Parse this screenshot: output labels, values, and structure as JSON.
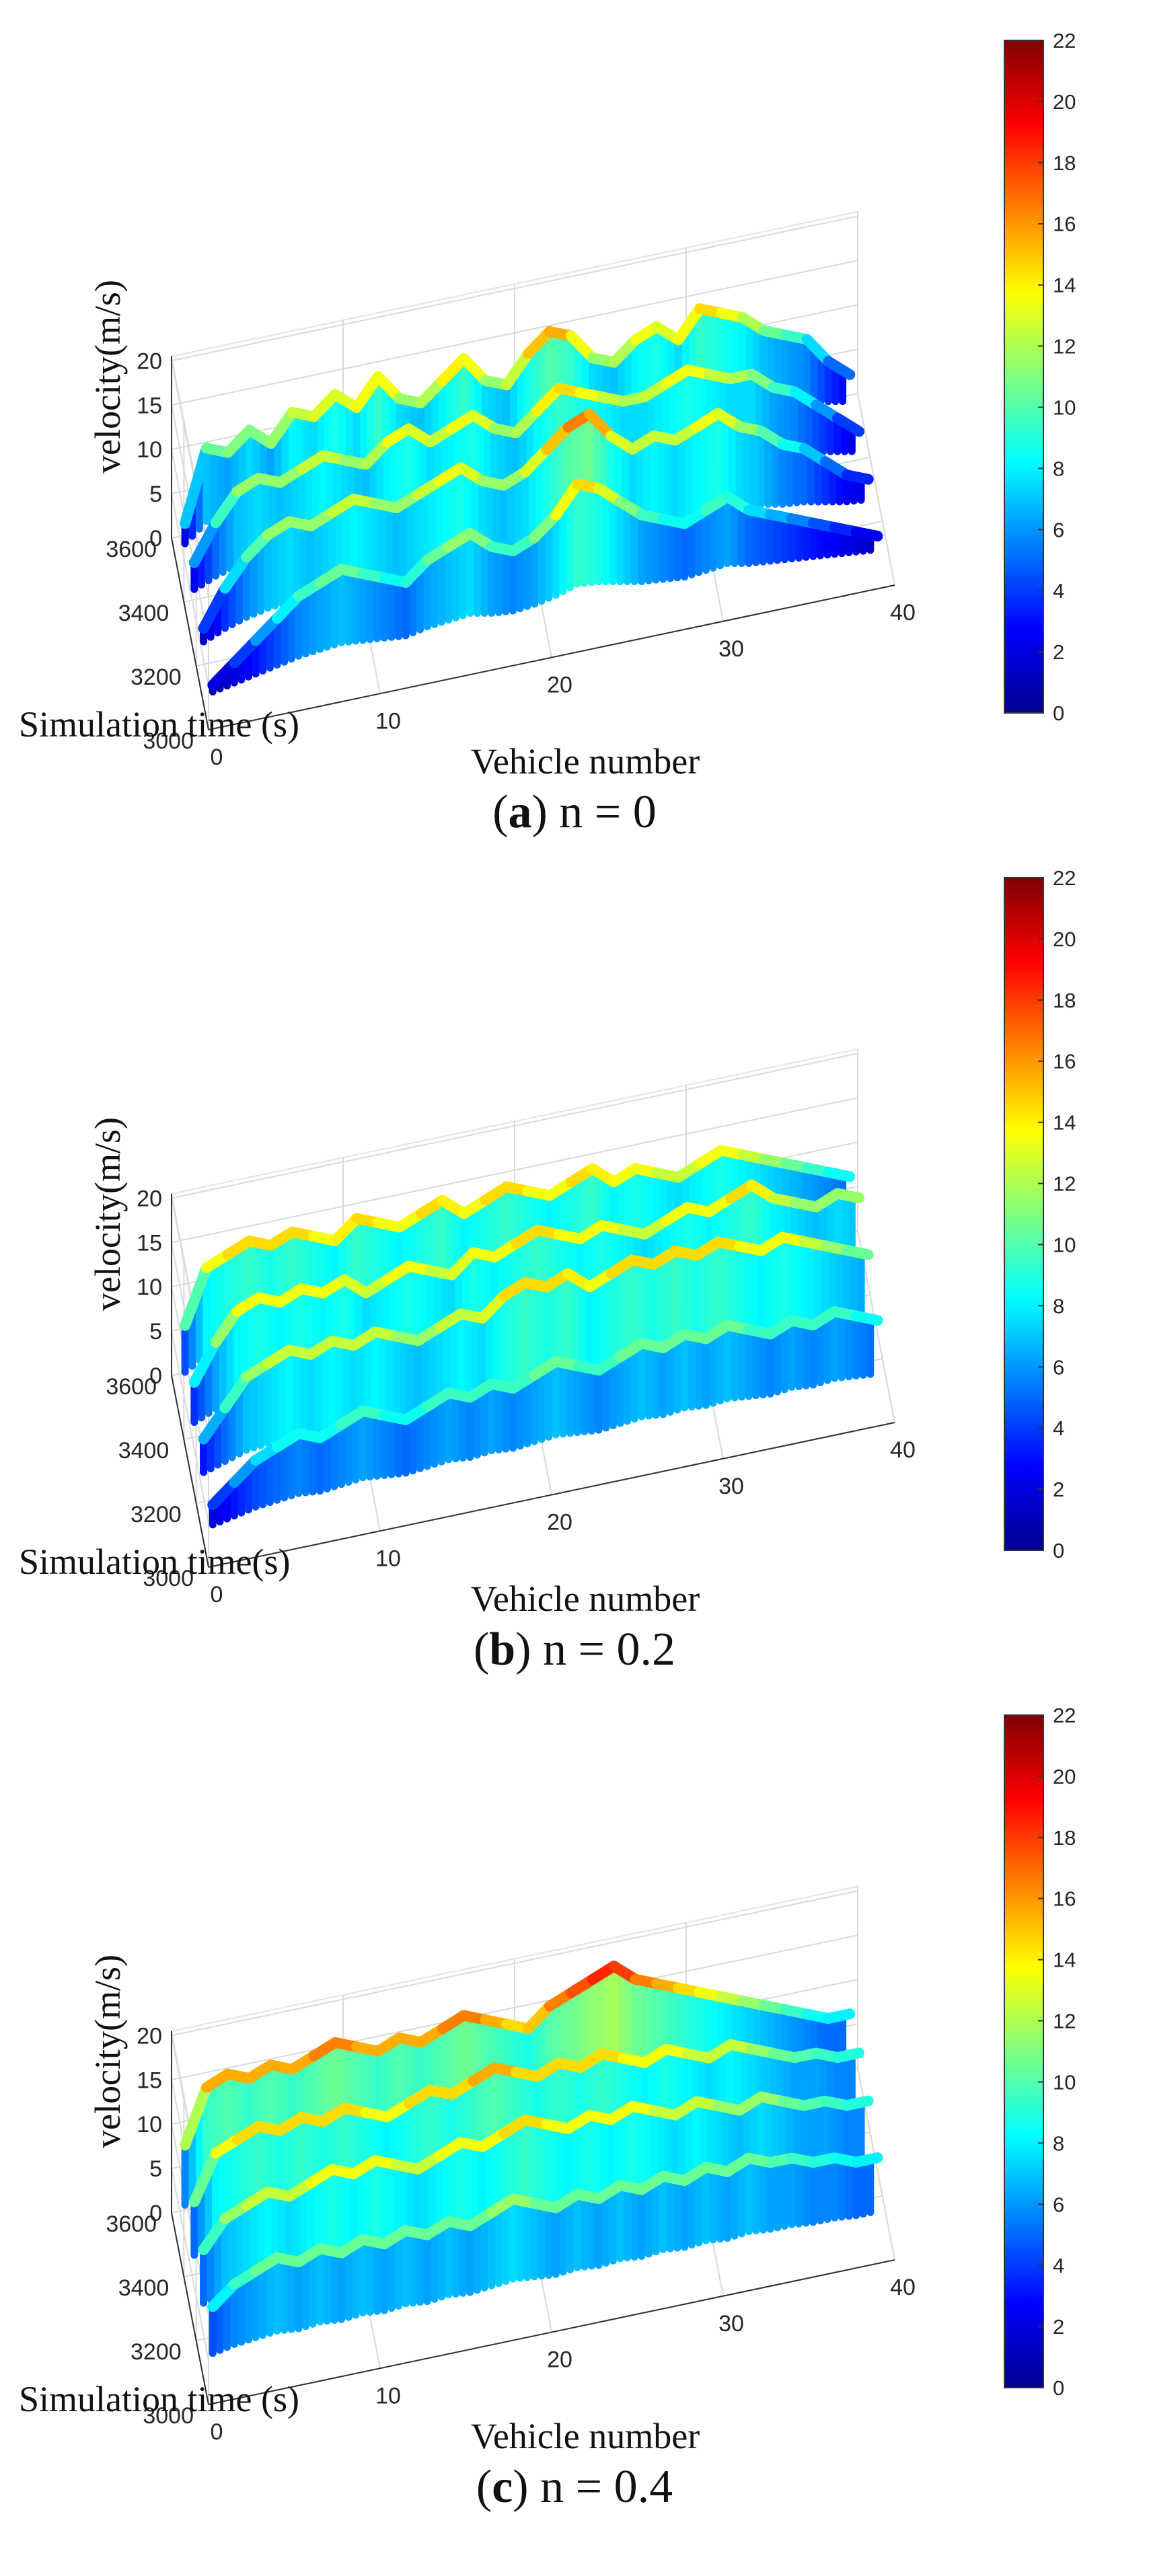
{
  "figure": {
    "z_label": "velocity(m/s)",
    "colorbar": {
      "ticks": [
        "0",
        "2",
        "4",
        "6",
        "8",
        "10",
        "12",
        "14",
        "16",
        "18",
        "20",
        "22"
      ],
      "min": 0,
      "max": 22,
      "colormap": "jet",
      "colors": [
        "#00008f",
        "#0000ff",
        "#0080ff",
        "#00ffff",
        "#80ff80",
        "#ffff00",
        "#ff8000",
        "#ff0000",
        "#800000"
      ]
    }
  },
  "chart_data": [
    {
      "type": "3d-surface",
      "caption_letter": "a",
      "caption_rest": " n = 0",
      "xlabel": "Vehicle number",
      "ylabel": "Simulation time (s)",
      "zlabel": "velocity(m/s)",
      "x_ticks": [
        "0",
        "10",
        "20",
        "30",
        "40"
      ],
      "y_ticks": [
        "3000",
        "3200",
        "3400",
        "3600"
      ],
      "z_ticks": [
        "0",
        "5",
        "10",
        "15",
        "20"
      ],
      "xlim": [
        0,
        40
      ],
      "ylim": [
        3000,
        3600
      ],
      "zlim": [
        0,
        22
      ],
      "colorbar_ticks": [
        "0",
        "2",
        "4",
        "6",
        "8",
        "10",
        "12",
        "14",
        "16",
        "18",
        "20",
        "22"
      ],
      "series": [
        {
          "values": [
            3,
            11,
            10,
            12,
            10,
            13,
            12,
            14,
            12,
            15,
            12,
            11,
            13,
            15,
            12,
            11,
            14,
            16,
            15,
            12,
            11,
            13,
            14,
            12,
            15,
            14,
            13,
            11,
            10,
            9,
            6,
            4
          ]
        },
        {
          "values": [
            4,
            8,
            11,
            12,
            11,
            12,
            13,
            12,
            11,
            13,
            14,
            12,
            13,
            14,
            12,
            11,
            13,
            15,
            14,
            13,
            12,
            12,
            13,
            14,
            13,
            12,
            12,
            10,
            9,
            7,
            5,
            3
          ]
        },
        {
          "values": [
            2,
            6,
            9,
            11,
            12,
            11,
            12,
            13,
            12,
            11,
            12,
            13,
            14,
            12,
            11,
            12,
            14,
            16,
            17,
            14,
            12,
            13,
            12,
            13,
            14,
            12,
            11,
            9,
            8,
            6,
            4,
            3
          ]
        },
        {
          "values": [
            1,
            3,
            5,
            7,
            9,
            10,
            11,
            10,
            9,
            8,
            10,
            11,
            12,
            10,
            9,
            10,
            12,
            15,
            14,
            12,
            10,
            9,
            8,
            9,
            10,
            8,
            7,
            6,
            5,
            4,
            3,
            2
          ]
        }
      ]
    },
    {
      "type": "3d-surface",
      "caption_letter": "b",
      "caption_rest": " n = 0.2",
      "xlabel": "Vehicle  number",
      "ylabel": "Simulation time(s)",
      "zlabel": "velocity(m/s)",
      "x_ticks": [
        "0",
        "10",
        "20",
        "30",
        "40"
      ],
      "y_ticks": [
        "3000",
        "3200",
        "3400",
        "3600"
      ],
      "z_ticks": [
        "0",
        "5",
        "10",
        "15",
        "20"
      ],
      "xlim": [
        0,
        40
      ],
      "ylim": [
        3000,
        3600
      ],
      "zlim": [
        0,
        22
      ],
      "colorbar_ticks": [
        "0",
        "2",
        "4",
        "6",
        "8",
        "10",
        "12",
        "14",
        "16",
        "18",
        "20",
        "22"
      ],
      "series": [
        {
          "values": [
            7,
            13,
            14,
            15,
            14,
            15,
            14,
            13,
            15,
            14,
            13,
            14,
            15,
            13,
            14,
            15,
            14,
            13,
            14,
            15,
            13,
            14,
            13,
            12,
            13,
            14,
            13,
            12,
            11,
            10,
            9,
            8
          ]
        },
        {
          "values": [
            6,
            10,
            13,
            14,
            13,
            14,
            13,
            14,
            12,
            13,
            14,
            13,
            12,
            14,
            13,
            14,
            15,
            14,
            13,
            14,
            13,
            12,
            13,
            14,
            13,
            14,
            15,
            13,
            12,
            11,
            12,
            11
          ]
        },
        {
          "values": [
            5,
            8,
            11,
            12,
            13,
            12,
            13,
            12,
            13,
            12,
            11,
            12,
            13,
            12,
            14,
            15,
            14,
            15,
            13,
            14,
            15,
            14,
            15,
            14,
            15,
            14,
            13,
            14,
            13,
            12,
            11,
            10
          ]
        },
        {
          "values": [
            3,
            5,
            7,
            8,
            9,
            8,
            9,
            10,
            9,
            8,
            9,
            10,
            9,
            10,
            9,
            10,
            11,
            10,
            9,
            10,
            11,
            10,
            11,
            10,
            11,
            10,
            9,
            10,
            9,
            10,
            9,
            8
          ]
        }
      ]
    },
    {
      "type": "3d-surface",
      "caption_letter": "c",
      "caption_rest": " n = 0.4",
      "xlabel": "Vehicle number",
      "ylabel": "Simulation time (s)",
      "zlabel": "velocity(m/s)",
      "x_ticks": [
        "0",
        "10",
        "20",
        "30",
        "40"
      ],
      "y_ticks": [
        "3000",
        "3200",
        "3400",
        "3600"
      ],
      "z_ticks": [
        "0",
        "5",
        "10",
        "15",
        "20"
      ],
      "xlim": [
        0,
        40
      ],
      "ylim": [
        3000,
        3600
      ],
      "zlim": [
        0,
        22
      ],
      "colorbar_ticks": [
        "0",
        "2",
        "4",
        "6",
        "8",
        "10",
        "12",
        "14",
        "16",
        "18",
        "20",
        "22"
      ],
      "series": [
        {
          "values": [
            9,
            15,
            16,
            15,
            16,
            15,
            16,
            17,
            16,
            15,
            16,
            15,
            16,
            17,
            16,
            15,
            14,
            16,
            17,
            18,
            19,
            17,
            16,
            15,
            14,
            13,
            12,
            11,
            10,
            9,
            8,
            8
          ]
        },
        {
          "values": [
            8,
            13,
            14,
            15,
            14,
            15,
            14,
            15,
            14,
            13,
            14,
            15,
            14,
            15,
            16,
            15,
            14,
            15,
            14,
            15,
            14,
            13,
            14,
            13,
            12,
            13,
            12,
            11,
            10,
            10,
            9,
            9
          ]
        },
        {
          "values": [
            8,
            11,
            12,
            13,
            12,
            13,
            14,
            13,
            14,
            13,
            12,
            13,
            14,
            13,
            14,
            15,
            14,
            13,
            14,
            13,
            14,
            13,
            12,
            13,
            12,
            11,
            12,
            11,
            10,
            10,
            9,
            9
          ]
        },
        {
          "values": [
            7,
            9,
            10,
            11,
            10,
            11,
            10,
            11,
            10,
            11,
            10,
            11,
            10,
            11,
            12,
            11,
            10,
            11,
            10,
            11,
            10,
            11,
            10,
            11,
            10,
            11,
            10,
            10,
            9,
            9,
            8,
            8
          ]
        }
      ]
    }
  ]
}
